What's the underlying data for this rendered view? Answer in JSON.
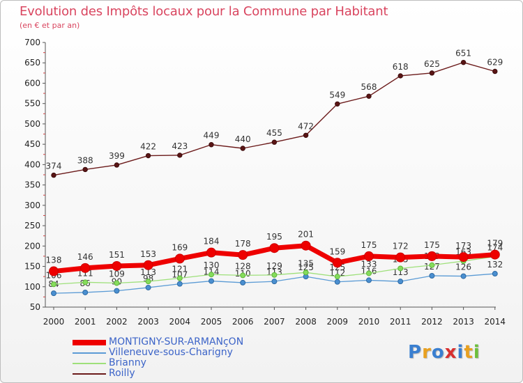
{
  "chart_data": {
    "type": "line",
    "title": "Evolution des Impôts locaux pour la Commune par Habitant",
    "subtitle": "(en € et par an)",
    "xlabel": "",
    "ylabel": "",
    "ylim": [
      50,
      700
    ],
    "yticks": [
      50,
      100,
      150,
      200,
      250,
      300,
      350,
      400,
      450,
      500,
      550,
      600,
      650,
      700
    ],
    "grid": false,
    "legend_position": "bottom-left",
    "x": [
      "2000",
      "2001",
      "2002",
      "2003",
      "2004",
      "2005",
      "2006",
      "2007",
      "2008",
      "2009",
      "2010",
      "2011",
      "2012",
      "2013",
      "2014"
    ],
    "series": [
      {
        "name": "Roilly",
        "color": "#6b1a1a",
        "values": [
          374,
          388,
          399,
          422,
          423,
          449,
          440,
          455,
          472,
          549,
          568,
          618,
          625,
          651,
          629
        ]
      },
      {
        "name": "Villeneuve-sous-Charigny",
        "color": "#5b9bd5",
        "values": [
          84,
          86,
          90,
          98,
          107,
          114,
          110,
          113,
          125,
          112,
          116,
          113,
          127,
          126,
          132
        ]
      },
      {
        "name": "Brianny",
        "color": "#9ee07a",
        "values": [
          106,
          111,
          109,
          113,
          121,
          130,
          128,
          129,
          135,
          125,
          133,
          145,
          153,
          163,
          174
        ]
      },
      {
        "name": "MONTIGNY-SUR-ARMANçON",
        "color": "#ee0000",
        "values": [
          138,
          146,
          151,
          153,
          169,
          184,
          178,
          195,
          201,
          159,
          175,
          172,
          175,
          173,
          179
        ]
      }
    ]
  },
  "logo": {
    "letters": [
      "P",
      "r",
      "o",
      "x",
      "i",
      "t",
      "i"
    ]
  }
}
